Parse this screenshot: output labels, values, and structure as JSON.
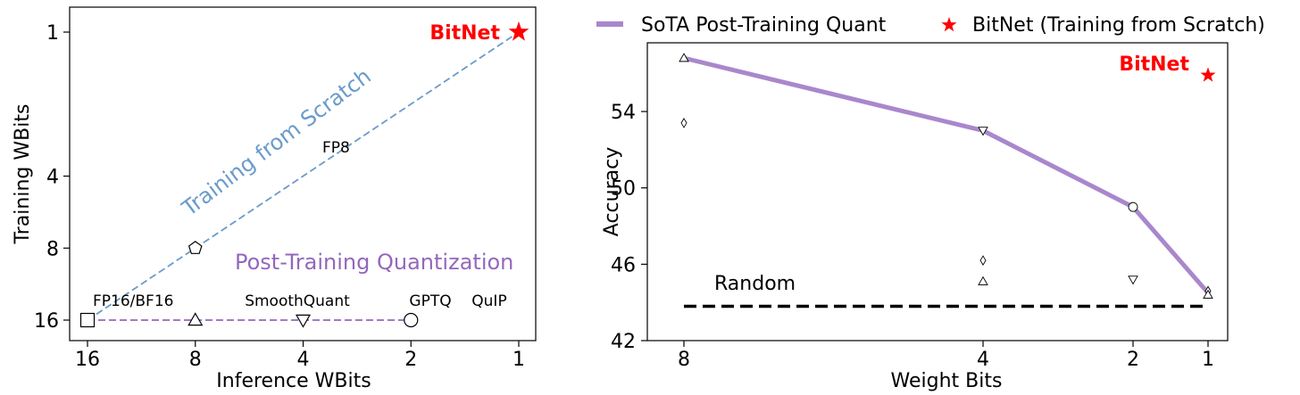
{
  "chart_data": [
    {
      "type": "scatter",
      "xlabel": "Inference WBits",
      "ylabel": "Training WBits",
      "x_scale": "log2-reversed",
      "y_scale": "log2-reversed",
      "x_ticks": [
        "16",
        "8",
        "4",
        "2",
        "1"
      ],
      "y_ticks": [
        "1",
        "4",
        "8",
        "16"
      ],
      "grid": false,
      "points": [
        {
          "label": "FP16/BF16",
          "x": 16,
          "y": 16,
          "marker": "square"
        },
        {
          "label": "SmoothQuant",
          "x": 8,
          "y": 16,
          "marker": "triangle-up"
        },
        {
          "label": "GPTQ",
          "x": 4,
          "y": 16,
          "marker": "triangle-down"
        },
        {
          "label": "QuIP",
          "x": 2,
          "y": 16,
          "marker": "circle"
        },
        {
          "label": "FP8",
          "x": 8,
          "y": 8,
          "marker": "pentagon"
        },
        {
          "label": "BitNet",
          "x": 1,
          "y": 1,
          "marker": "star",
          "color": "#ff0000"
        }
      ],
      "lines": [
        {
          "name": "Training from Scratch",
          "color": "#6a9bcb",
          "from": [
            16,
            16
          ],
          "to": [
            1,
            1
          ]
        },
        {
          "name": "Post-Training Quantization",
          "color": "#9467bd",
          "from": [
            16,
            16
          ],
          "to": [
            2,
            16
          ]
        }
      ]
    },
    {
      "type": "line",
      "xlabel": "Weight Bits",
      "ylabel": "Accuracy",
      "x_ticks": [
        "8",
        "4",
        "2",
        "1"
      ],
      "y_ticks": [
        42,
        46,
        50,
        54
      ],
      "ylim": [
        42,
        57.6
      ],
      "grid": false,
      "legend_placement": "top",
      "series": [
        {
          "name": "SoTA Post-Training Quant",
          "color": "#a987cc",
          "x": [
            8,
            4,
            2,
            1
          ],
          "values": [
            56.8,
            53.0,
            49.0,
            44.5
          ]
        }
      ],
      "scatter": [
        {
          "x": 8,
          "y": 56.8,
          "marker": "triangle-up"
        },
        {
          "x": 8,
          "y": 53.4,
          "marker": "diamond"
        },
        {
          "x": 4,
          "y": 53.0,
          "marker": "triangle-down"
        },
        {
          "x": 4,
          "y": 46.2,
          "marker": "diamond"
        },
        {
          "x": 4,
          "y": 45.1,
          "marker": "triangle-up"
        },
        {
          "x": 2,
          "y": 49.0,
          "marker": "circle"
        },
        {
          "x": 2,
          "y": 45.2,
          "marker": "triangle-down"
        },
        {
          "x": 1,
          "y": 44.6,
          "marker": "diamond"
        },
        {
          "x": 1,
          "y": 44.4,
          "marker": "triangle-up"
        }
      ],
      "bitnet": {
        "label": "BitNet",
        "legend": "BitNet (Training from Scratch)",
        "x": 1,
        "y": 55.9,
        "color": "#ff0000"
      },
      "baseline": {
        "label": "Random",
        "y": 43.8,
        "color": "#000000"
      }
    }
  ]
}
